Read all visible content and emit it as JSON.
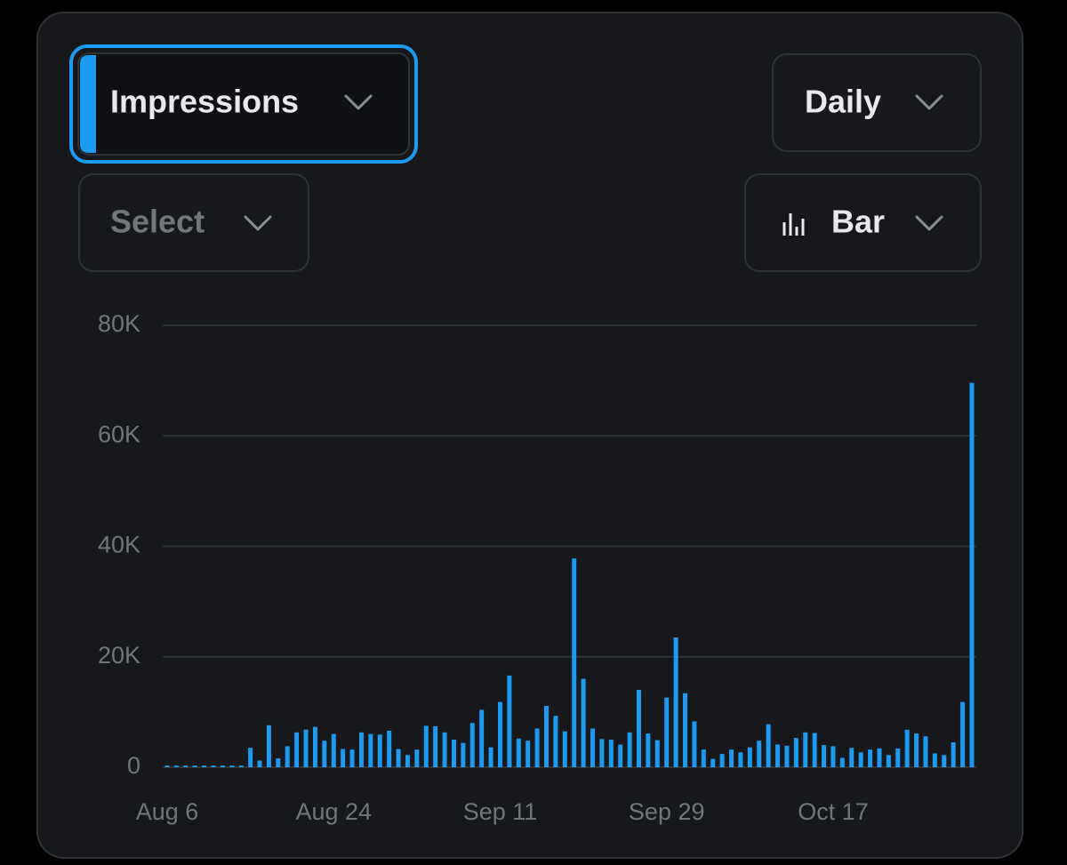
{
  "controls": {
    "metric": "Impressions",
    "interval": "Daily",
    "compare": "Select",
    "chart_style": "Bar"
  },
  "chart_data": {
    "type": "bar",
    "categories": [
      "Aug 6",
      null,
      null,
      null,
      null,
      null,
      null,
      null,
      null,
      null,
      null,
      null,
      null,
      null,
      null,
      null,
      null,
      null,
      "Aug 24",
      null,
      null,
      null,
      null,
      null,
      null,
      null,
      null,
      null,
      null,
      null,
      null,
      null,
      null,
      null,
      null,
      null,
      "Sep 11",
      null,
      null,
      null,
      null,
      null,
      null,
      null,
      null,
      null,
      null,
      null,
      null,
      null,
      null,
      null,
      null,
      null,
      "Sep 29",
      null,
      null,
      null,
      null,
      null,
      null,
      null,
      null,
      null,
      null,
      null,
      null,
      null,
      null,
      null,
      null,
      null,
      "Oct 17",
      null,
      null,
      null,
      null,
      null,
      null,
      null,
      null,
      null,
      null,
      null,
      null,
      null,
      null,
      null
    ],
    "values": [
      300,
      300,
      300,
      300,
      300,
      300,
      300,
      300,
      300,
      3500,
      1200,
      7600,
      1600,
      3800,
      6300,
      6800,
      7300,
      4800,
      6000,
      3300,
      3200,
      6300,
      6000,
      5900,
      6600,
      3300,
      2200,
      3200,
      7500,
      7400,
      6300,
      5000,
      4400,
      8000,
      10400,
      3600,
      11800,
      16600,
      5200,
      4800,
      7000,
      11100,
      9300,
      6500,
      37800,
      16000,
      7000,
      5100,
      5000,
      4100,
      6300,
      14000,
      6100,
      4900,
      12600,
      23500,
      13400,
      8300,
      3200,
      1500,
      2400,
      3200,
      2700,
      3600,
      4800,
      7800,
      4100,
      3900,
      5300,
      6300,
      6200,
      4000,
      3800,
      1700,
      3500,
      2700,
      3200,
      3400,
      2200,
      3400,
      6800,
      6100,
      5600,
      2500,
      2200,
      4500,
      11800,
      69600
    ],
    "color": "#1d9bf0",
    "ylim": [
      0,
      80000
    ],
    "yticks": [
      0,
      {
        "value": 20000,
        "label": "20K"
      },
      {
        "value": 40000,
        "label": "40K"
      },
      {
        "value": 60000,
        "label": "60K"
      },
      {
        "value": 80000,
        "label": "80K"
      }
    ],
    "grid": true
  }
}
